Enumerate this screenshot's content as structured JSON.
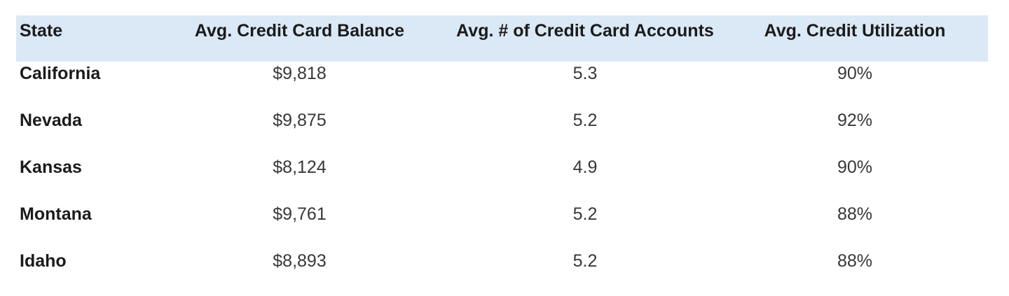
{
  "table": {
    "header": {
      "state": "State",
      "balance": "Avg. Credit Card Balance",
      "accounts": "Avg. # of Credit Card Accounts",
      "utilization": "Avg. Credit Utilization"
    },
    "rows": [
      {
        "state": "California",
        "balance": "$9,818",
        "accounts": "5.3",
        "utilization": "90%"
      },
      {
        "state": "Nevada",
        "balance": "$9,875",
        "accounts": "5.2",
        "utilization": "92%"
      },
      {
        "state": "Kansas",
        "balance": "$8,124",
        "accounts": "4.9",
        "utilization": "90%"
      },
      {
        "state": "Montana",
        "balance": "$9,761",
        "accounts": "5.2",
        "utilization": "88%"
      },
      {
        "state": "Idaho",
        "balance": "$8,893",
        "accounts": "5.2",
        "utilization": "88%"
      }
    ],
    "colors": {
      "header_background": "#dbe8f6",
      "header_text": "#1b1b1b",
      "state_text": "#1b1b1b",
      "value_text": "#383838",
      "page_background": "#ffffff"
    }
  },
  "chart_data": {
    "type": "table",
    "columns": [
      "State",
      "Avg. Credit Card Balance",
      "Avg. # of Credit Card Accounts",
      "Avg. Credit Utilization"
    ],
    "rows": [
      [
        "California",
        "$9,818",
        5.3,
        "90%"
      ],
      [
        "Nevada",
        "$9,875",
        5.2,
        "92%"
      ],
      [
        "Kansas",
        "$8,124",
        4.9,
        "90%"
      ],
      [
        "Montana",
        "$9,761",
        5.2,
        "88%"
      ],
      [
        "Idaho",
        "$8,893",
        5.2,
        "88%"
      ]
    ],
    "notes": {
      "balance_values_usd": [
        9818,
        9875,
        8124,
        9761,
        8893
      ],
      "account_values": [
        5.3,
        5.2,
        4.9,
        5.2,
        5.2
      ],
      "utilization_percent": [
        90,
        92,
        90,
        88,
        88
      ]
    }
  }
}
